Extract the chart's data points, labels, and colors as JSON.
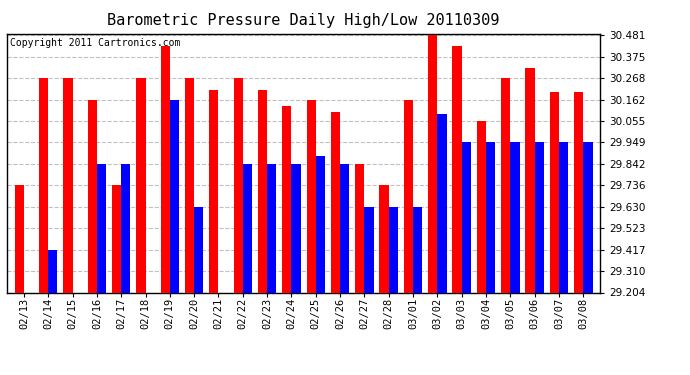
{
  "title": "Barometric Pressure Daily High/Low 20110309",
  "copyright": "Copyright 2011 Cartronics.com",
  "dates": [
    "02/13",
    "02/14",
    "02/15",
    "02/16",
    "02/17",
    "02/18",
    "02/19",
    "02/20",
    "02/21",
    "02/22",
    "02/23",
    "02/24",
    "02/25",
    "02/26",
    "02/27",
    "02/28",
    "03/01",
    "03/02",
    "03/03",
    "03/04",
    "03/05",
    "03/06",
    "03/07",
    "03/08"
  ],
  "highs": [
    29.736,
    30.268,
    30.268,
    30.162,
    29.736,
    30.268,
    30.43,
    30.268,
    30.21,
    30.268,
    30.21,
    30.13,
    30.162,
    30.1,
    29.842,
    29.736,
    30.162,
    30.481,
    30.43,
    30.055,
    30.268,
    30.32,
    30.2,
    30.2
  ],
  "lows": [
    29.204,
    29.417,
    29.204,
    29.842,
    29.842,
    29.204,
    30.162,
    29.63,
    29.204,
    29.842,
    29.842,
    29.842,
    29.88,
    29.842,
    29.63,
    29.63,
    29.63,
    30.09,
    29.949,
    29.949,
    29.949,
    29.949,
    29.949,
    29.949
  ],
  "high_color": "#ff0000",
  "low_color": "#0000ff",
  "bg_color": "#ffffff",
  "plot_bg_color": "#ffffff",
  "grid_color": "#c0c0c0",
  "ymin": 29.204,
  "ymax": 30.481,
  "yticks": [
    29.204,
    29.31,
    29.417,
    29.523,
    29.63,
    29.736,
    29.842,
    29.949,
    30.055,
    30.162,
    30.268,
    30.375,
    30.481
  ],
  "bar_width": 0.38,
  "title_fontsize": 11,
  "tick_fontsize": 7.5,
  "copyright_fontsize": 7
}
